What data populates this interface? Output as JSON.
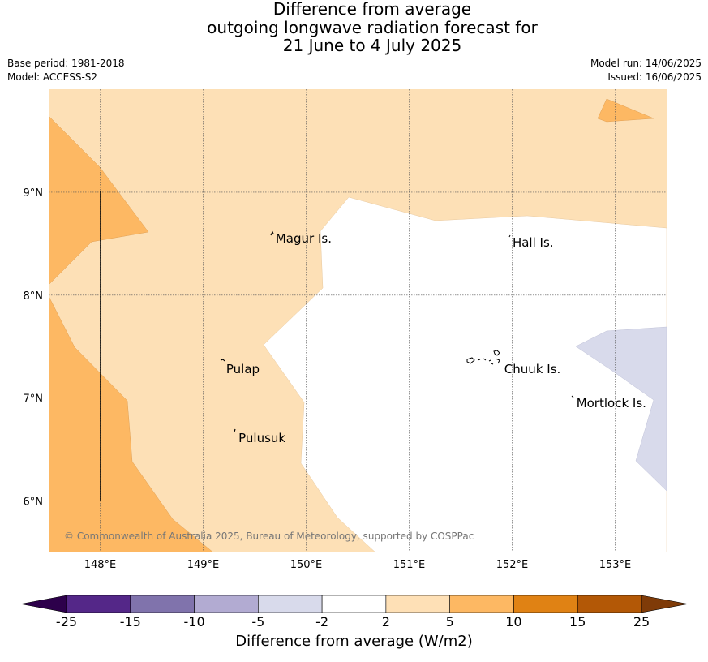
{
  "title": {
    "line1": "Difference from average",
    "line2": "outgoing longwave radiation forecast for",
    "line3": "21 June to 4 July 2025"
  },
  "meta": {
    "base_period": "Base period: 1981-2018",
    "model": "Model: ACCESS-S2",
    "model_run": "Model run: 14/06/2025",
    "issued": "Issued: 16/06/2025"
  },
  "map": {
    "lon_range": [
      147.5,
      153.5
    ],
    "lat_range": [
      5.5,
      10.0
    ],
    "x_ticks": [
      {
        "value": 148,
        "label": "148°E"
      },
      {
        "value": 149,
        "label": "149°E"
      },
      {
        "value": 150,
        "label": "150°E"
      },
      {
        "value": 151,
        "label": "151°E"
      },
      {
        "value": 152,
        "label": "152°E"
      },
      {
        "value": 153,
        "label": "153°E"
      }
    ],
    "y_ticks": [
      {
        "value": 9,
        "label": "9°N"
      },
      {
        "value": 8,
        "label": "8°N"
      },
      {
        "value": 7,
        "label": "7°N"
      },
      {
        "value": 6,
        "label": "6°N"
      }
    ],
    "places": [
      {
        "name": "Magur Is.",
        "lon": 149.68,
        "lat": 8.55
      },
      {
        "name": "Hall Is.",
        "lon": 151.98,
        "lat": 8.51
      },
      {
        "name": "Pulap",
        "lon": 149.2,
        "lat": 7.28
      },
      {
        "name": "Chuuk Is.",
        "lon": 151.9,
        "lat": 7.28
      },
      {
        "name": "Mortlock Is.",
        "lon": 152.6,
        "lat": 6.95
      },
      {
        "name": "Pulusuk",
        "lon": 149.32,
        "lat": 6.61
      }
    ],
    "copyright": "© Commonwealth of Australia 2025, Bureau of Meteorology, supported by COSPPac",
    "colors": {
      "light_orange": "#fde0b6",
      "orange": "#fdb863",
      "light_purple": "#d8daeb",
      "grid": "#555555"
    }
  },
  "colorbar": {
    "label": "Difference from average (W/m2)",
    "ticks": [
      "-25",
      "-15",
      "-10",
      "-5",
      "-2",
      "2",
      "5",
      "10",
      "15",
      "25"
    ],
    "colors": [
      "#2d004b",
      "#542788",
      "#8073ac",
      "#b2abd2",
      "#d8daeb",
      "#ffffff",
      "#fee0b6",
      "#fdb863",
      "#e08214",
      "#b35806",
      "#7f3b08"
    ]
  }
}
